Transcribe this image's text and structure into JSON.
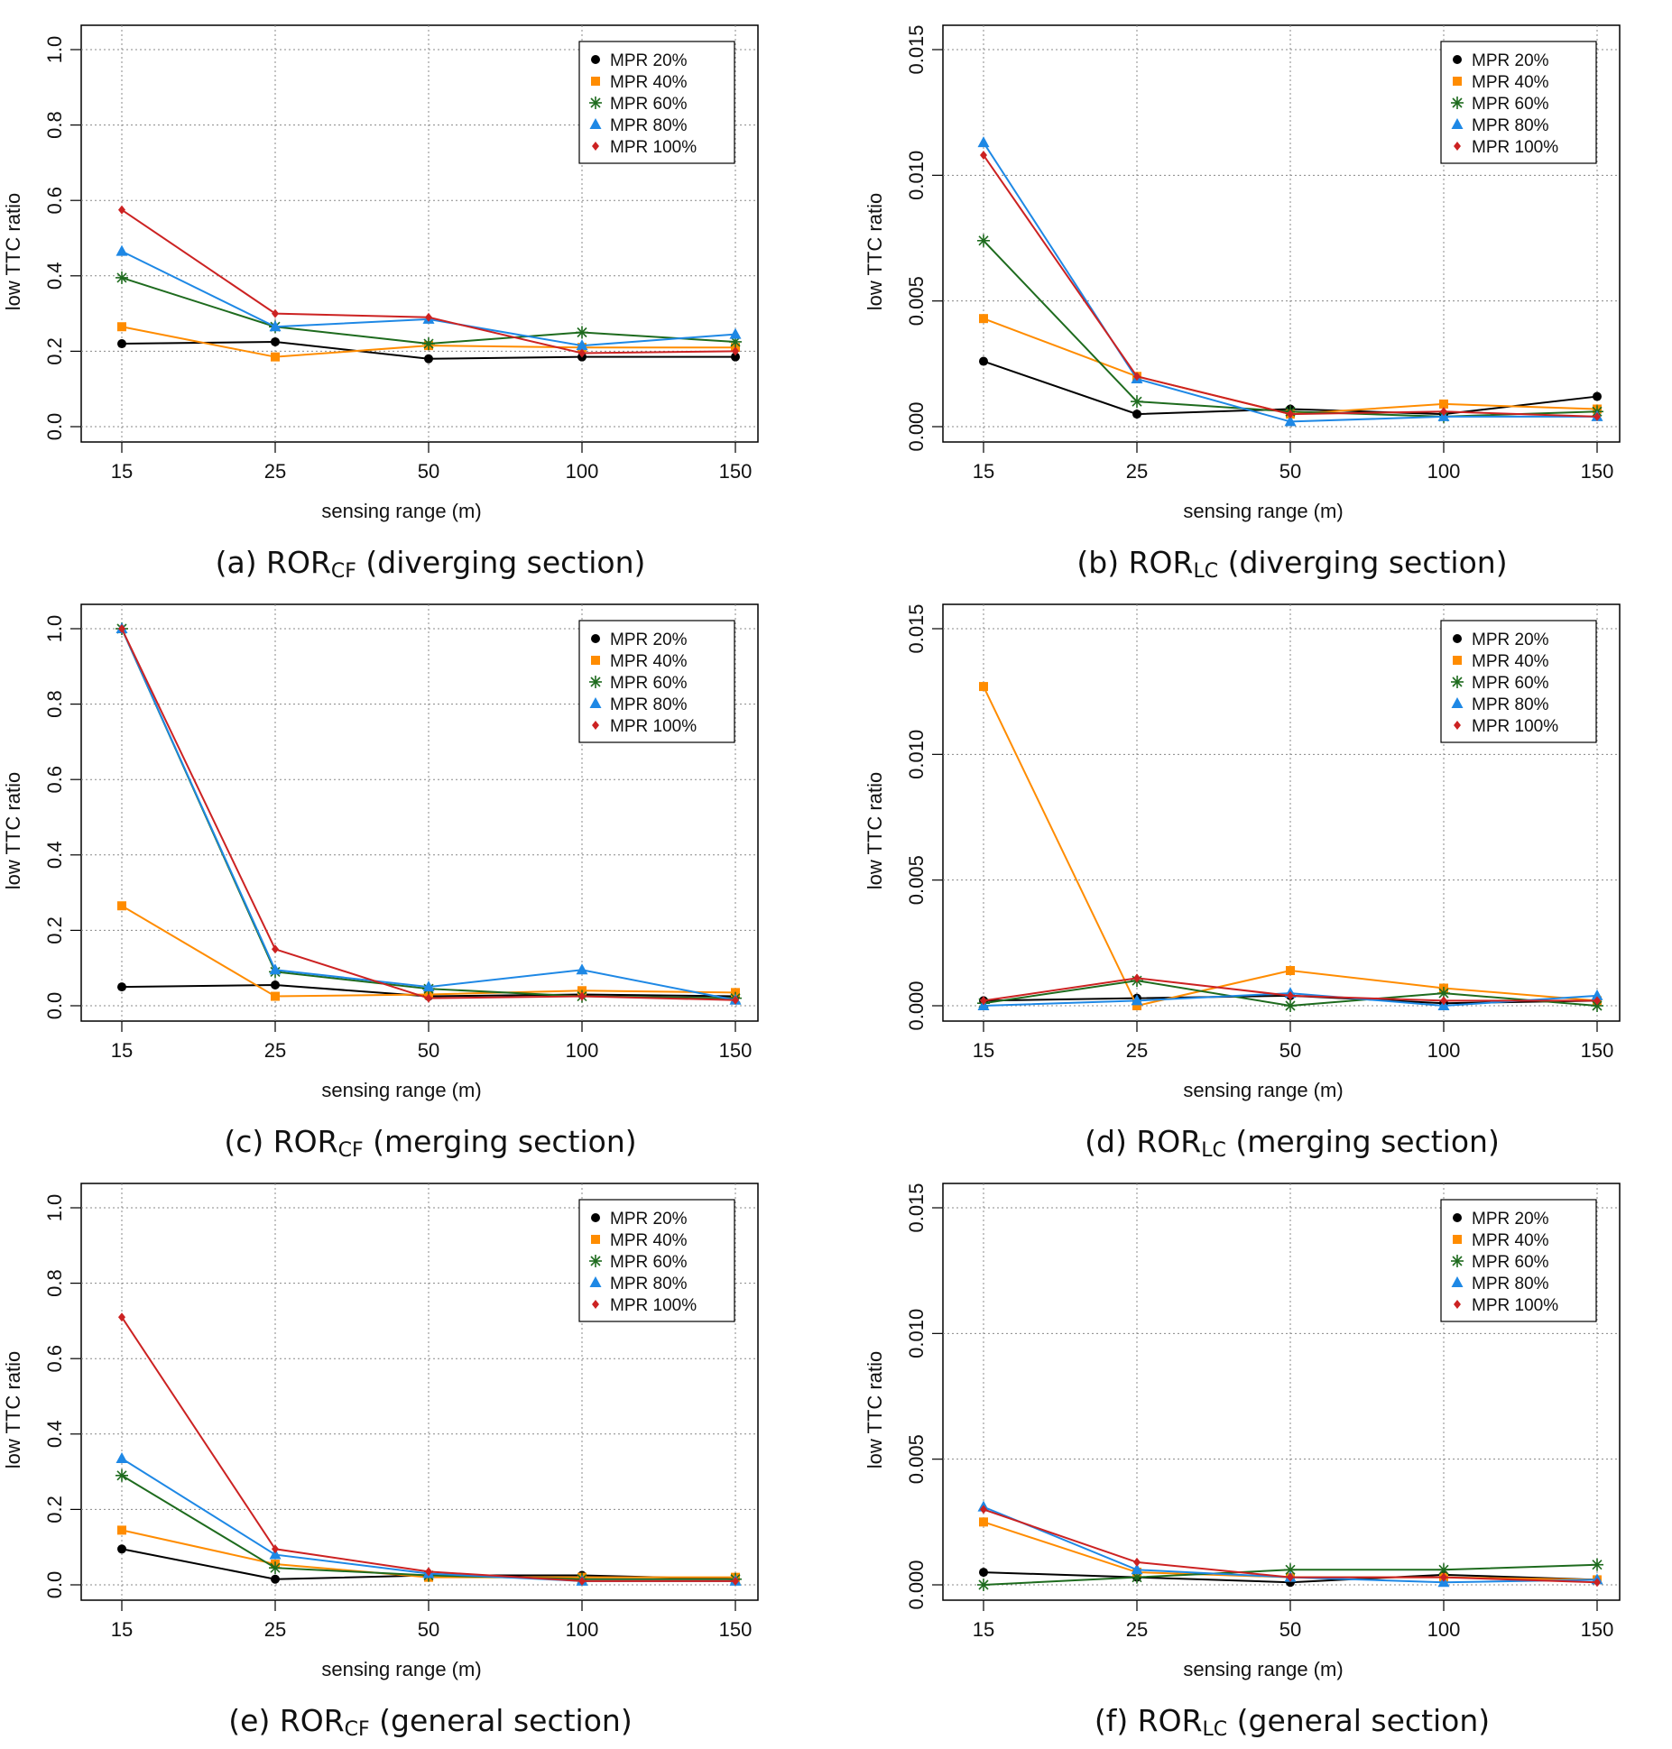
{
  "style": {
    "series_colors": [
      "#000000",
      "#FF8C00",
      "#1E6B1E",
      "#1E88E5",
      "#CC2222"
    ],
    "series_markers": [
      "circle",
      "square",
      "asterisk",
      "triangle",
      "diamond"
    ]
  },
  "chart_data": [
    {
      "id": "a",
      "type": "line",
      "caption": {
        "prefix": "(a) ROR",
        "sub": "CF",
        "suffix": " (diverging section)"
      },
      "xlabel": "sensing range (m)",
      "ylabel": "low TTC ratio",
      "categories": [
        "15",
        "25",
        "50",
        "100",
        "150"
      ],
      "ylim": [
        0,
        1.0
      ],
      "yticks": [
        "0.0",
        "0.2",
        "0.4",
        "0.6",
        "0.8",
        "1.0"
      ],
      "legend_position": "top-right",
      "grid": true,
      "series": [
        {
          "name": "MPR 20%",
          "values": [
            0.22,
            0.225,
            0.18,
            0.185,
            0.185
          ]
        },
        {
          "name": "MPR 40%",
          "values": [
            0.265,
            0.185,
            0.215,
            0.21,
            0.21
          ]
        },
        {
          "name": "MPR 60%",
          "values": [
            0.395,
            0.265,
            0.22,
            0.25,
            0.225
          ]
        },
        {
          "name": "MPR 80%",
          "values": [
            0.465,
            0.265,
            0.285,
            0.215,
            0.245
          ]
        },
        {
          "name": "MPR 100%",
          "values": [
            0.575,
            0.3,
            0.29,
            0.195,
            0.2
          ]
        }
      ]
    },
    {
      "id": "b",
      "type": "line",
      "caption": {
        "prefix": "(b) ROR",
        "sub": "LC",
        "suffix": " (diverging section)"
      },
      "xlabel": "sensing range (m)",
      "ylabel": "low TTC ratio",
      "categories": [
        "15",
        "25",
        "50",
        "100",
        "150"
      ],
      "ylim": [
        0,
        0.015
      ],
      "yticks": [
        "0.000",
        "0.005",
        "0.010",
        "0.015"
      ],
      "legend_position": "top-right",
      "grid": true,
      "series": [
        {
          "name": "MPR 20%",
          "values": [
            0.0026,
            0.0005,
            0.0007,
            0.0005,
            0.0012
          ]
        },
        {
          "name": "MPR 40%",
          "values": [
            0.0043,
            0.002,
            0.0005,
            0.0009,
            0.0007
          ]
        },
        {
          "name": "MPR 60%",
          "values": [
            0.0074,
            0.001,
            0.0006,
            0.0004,
            0.0006
          ]
        },
        {
          "name": "MPR 80%",
          "values": [
            0.0113,
            0.0019,
            0.0002,
            0.0004,
            0.0004
          ]
        },
        {
          "name": "MPR 100%",
          "values": [
            0.0108,
            0.002,
            0.0005,
            0.0006,
            0.0004
          ]
        }
      ]
    },
    {
      "id": "c",
      "type": "line",
      "caption": {
        "prefix": "(c) ROR",
        "sub": "CF",
        "suffix": " (merging section)"
      },
      "xlabel": "sensing range (m)",
      "ylabel": "low TTC ratio",
      "categories": [
        "15",
        "25",
        "50",
        "100",
        "150"
      ],
      "ylim": [
        0,
        1.0
      ],
      "yticks": [
        "0.0",
        "0.2",
        "0.4",
        "0.6",
        "0.8",
        "1.0"
      ],
      "legend_position": "top-right",
      "grid": true,
      "series": [
        {
          "name": "MPR 20%",
          "values": [
            0.05,
            0.055,
            0.025,
            0.03,
            0.025
          ]
        },
        {
          "name": "MPR 40%",
          "values": [
            0.265,
            0.025,
            0.03,
            0.04,
            0.035
          ]
        },
        {
          "name": "MPR 60%",
          "values": [
            1.0,
            0.09,
            0.045,
            0.025,
            0.02
          ]
        },
        {
          "name": "MPR 80%",
          "values": [
            1.0,
            0.095,
            0.05,
            0.095,
            0.015
          ]
        },
        {
          "name": "MPR 100%",
          "values": [
            1.0,
            0.15,
            0.02,
            0.025,
            0.015
          ]
        }
      ]
    },
    {
      "id": "d",
      "type": "line",
      "caption": {
        "prefix": "(d) ROR",
        "sub": "LC",
        "suffix": " (merging section)"
      },
      "xlabel": "sensing range (m)",
      "ylabel": "low TTC ratio",
      "categories": [
        "15",
        "25",
        "50",
        "100",
        "150"
      ],
      "ylim": [
        0,
        0.015
      ],
      "yticks": [
        "0.000",
        "0.005",
        "0.010",
        "0.015"
      ],
      "legend_position": "top-right",
      "grid": true,
      "series": [
        {
          "name": "MPR 20%",
          "values": [
            0.0002,
            0.0003,
            0.0004,
            0.0001,
            0.0002
          ]
        },
        {
          "name": "MPR 40%",
          "values": [
            0.0127,
            0.0,
            0.0014,
            0.0007,
            0.0002
          ]
        },
        {
          "name": "MPR 60%",
          "values": [
            0.0001,
            0.001,
            0.0,
            0.0005,
            0.0
          ]
        },
        {
          "name": "MPR 80%",
          "values": [
            0.0,
            0.0002,
            0.0005,
            0.0,
            0.0004
          ]
        },
        {
          "name": "MPR 100%",
          "values": [
            0.0002,
            0.0011,
            0.0004,
            0.0002,
            0.0002
          ]
        }
      ]
    },
    {
      "id": "e",
      "type": "line",
      "caption": {
        "prefix": "(e) ROR",
        "sub": "CF",
        "suffix": " (general section)"
      },
      "xlabel": "sensing range (m)",
      "ylabel": "low TTC ratio",
      "categories": [
        "15",
        "25",
        "50",
        "100",
        "150"
      ],
      "ylim": [
        0,
        1.0
      ],
      "yticks": [
        "0.0",
        "0.2",
        "0.4",
        "0.6",
        "0.8",
        "1.0"
      ],
      "legend_position": "top-right",
      "grid": true,
      "series": [
        {
          "name": "MPR 20%",
          "values": [
            0.095,
            0.015,
            0.025,
            0.025,
            0.015
          ]
        },
        {
          "name": "MPR 40%",
          "values": [
            0.145,
            0.055,
            0.02,
            0.02,
            0.02
          ]
        },
        {
          "name": "MPR 60%",
          "values": [
            0.29,
            0.045,
            0.025,
            0.015,
            0.015
          ]
        },
        {
          "name": "MPR 80%",
          "values": [
            0.335,
            0.08,
            0.03,
            0.01,
            0.01
          ]
        },
        {
          "name": "MPR 100%",
          "values": [
            0.71,
            0.095,
            0.035,
            0.01,
            0.01
          ]
        }
      ]
    },
    {
      "id": "f",
      "type": "line",
      "caption": {
        "prefix": "(f) ROR",
        "sub": "LC",
        "suffix": " (general section)"
      },
      "xlabel": "sensing range (m)",
      "ylabel": "low TTC ratio",
      "categories": [
        "15",
        "25",
        "50",
        "100",
        "150"
      ],
      "ylim": [
        0,
        0.015
      ],
      "yticks": [
        "0.000",
        "0.005",
        "0.010",
        "0.015"
      ],
      "legend_position": "top-right",
      "grid": true,
      "series": [
        {
          "name": "MPR 20%",
          "values": [
            0.0005,
            0.0003,
            0.0001,
            0.0004,
            0.0002
          ]
        },
        {
          "name": "MPR 40%",
          "values": [
            0.0025,
            0.0005,
            0.0003,
            0.0003,
            0.0002
          ]
        },
        {
          "name": "MPR 60%",
          "values": [
            0.0,
            0.0003,
            0.0006,
            0.0006,
            0.0008
          ]
        },
        {
          "name": "MPR 80%",
          "values": [
            0.0031,
            0.0006,
            0.0003,
            0.0001,
            0.0002
          ]
        },
        {
          "name": "MPR 100%",
          "values": [
            0.003,
            0.0009,
            0.0003,
            0.0003,
            0.0001
          ]
        }
      ]
    }
  ]
}
